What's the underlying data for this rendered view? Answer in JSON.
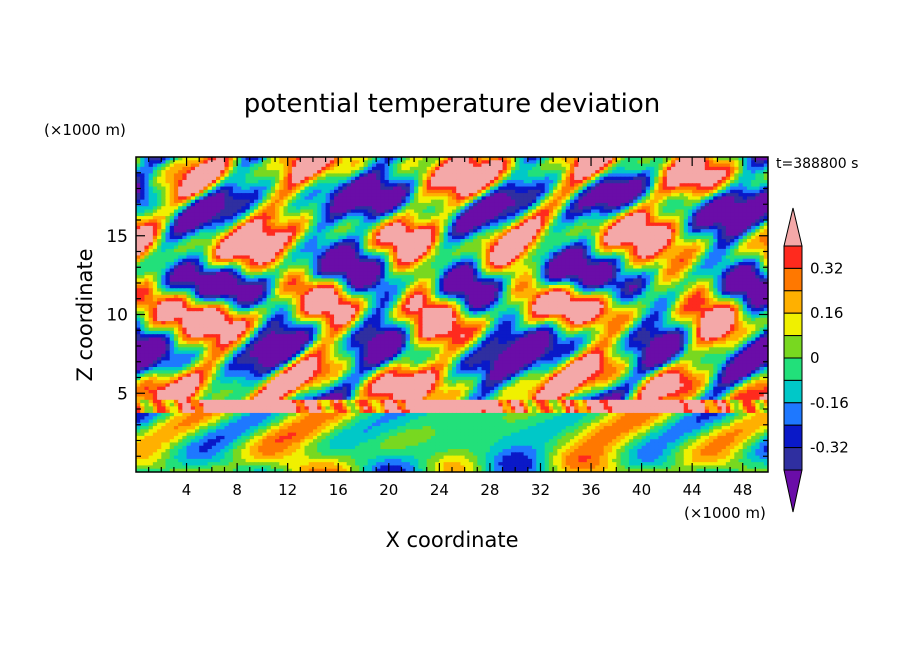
{
  "chart_data": {
    "type": "heatmap",
    "title": "potential temperature deviation",
    "xlabel": "X coordinate",
    "ylabel": "Z coordinate",
    "x_unit": "(×1000 m)",
    "y_unit": "(×1000 m)",
    "time_label": "t=388800 s",
    "xlim": [
      0,
      50
    ],
    "ylim": [
      0,
      20
    ],
    "x_ticks": [
      "4",
      "8",
      "12",
      "16",
      "20",
      "24",
      "28",
      "32",
      "36",
      "40",
      "44",
      "48"
    ],
    "y_ticks": [
      "5",
      "10",
      "15"
    ],
    "colorbar": {
      "levels": [
        -0.4,
        -0.32,
        -0.24,
        -0.16,
        -0.08,
        0,
        0.08,
        0.16,
        0.24,
        0.32,
        0.4
      ],
      "labels": [
        "0.32",
        "0.16",
        "0",
        "-0.16",
        "-0.32"
      ],
      "colors": [
        "#6a0da8",
        "#2f2fa0",
        "#0a19c8",
        "#1e78ff",
        "#00c8c8",
        "#22e07a",
        "#78d820",
        "#f0f000",
        "#ffb000",
        "#ff7800",
        "#ff2a1e",
        "#f4a8a8"
      ]
    }
  }
}
